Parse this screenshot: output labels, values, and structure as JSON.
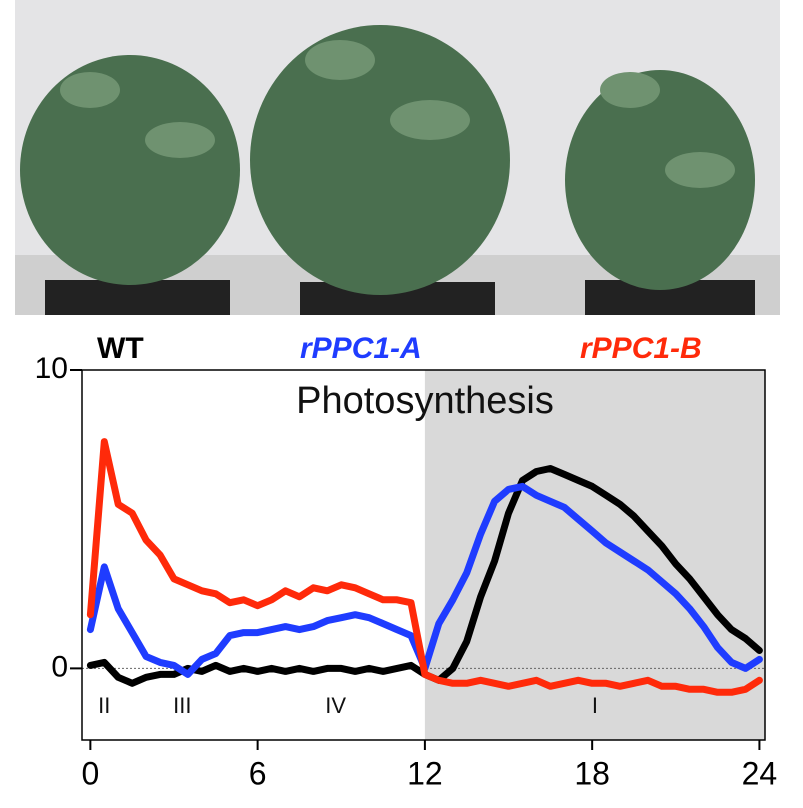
{
  "chart_data": {
    "type": "line",
    "title": "Photosynthesis",
    "x": [
      0,
      0.5,
      1,
      1.5,
      2,
      2.5,
      3,
      3.5,
      4,
      4.5,
      5,
      5.5,
      6,
      6.5,
      7,
      7.5,
      8,
      8.5,
      9,
      9.5,
      10,
      10.5,
      11,
      11.5,
      12,
      12.5,
      13,
      13.5,
      14,
      14.5,
      15,
      15.5,
      16,
      16.5,
      17,
      17.5,
      18,
      18.5,
      19,
      19.5,
      20,
      20.5,
      21,
      21.5,
      22,
      22.5,
      23,
      23.5,
      24
    ],
    "series": [
      {
        "name": "WT",
        "color": "#000000",
        "values": [
          0.1,
          0.2,
          -0.3,
          -0.5,
          -0.3,
          -0.2,
          -0.2,
          0.0,
          -0.1,
          0.1,
          -0.1,
          0.0,
          -0.1,
          0.0,
          -0.1,
          0.0,
          -0.1,
          0.0,
          0.0,
          -0.1,
          0.0,
          -0.1,
          0.0,
          0.1,
          -0.2,
          -0.4,
          0.0,
          0.9,
          2.4,
          3.6,
          5.2,
          6.3,
          6.6,
          6.7,
          6.5,
          6.3,
          6.1,
          5.8,
          5.5,
          5.1,
          4.6,
          4.1,
          3.5,
          3.0,
          2.4,
          1.8,
          1.3,
          1.0,
          0.6
        ]
      },
      {
        "name": "rPPC1-A",
        "color": "#1f3cff",
        "values": [
          1.3,
          3.4,
          2.0,
          1.2,
          0.4,
          0.2,
          0.1,
          -0.2,
          0.3,
          0.5,
          1.1,
          1.2,
          1.2,
          1.3,
          1.4,
          1.3,
          1.4,
          1.6,
          1.7,
          1.8,
          1.7,
          1.5,
          1.3,
          1.1,
          0.0,
          1.5,
          2.3,
          3.2,
          4.5,
          5.6,
          6.0,
          6.1,
          5.8,
          5.6,
          5.4,
          5.0,
          4.6,
          4.2,
          3.9,
          3.6,
          3.3,
          2.9,
          2.5,
          2.0,
          1.4,
          0.7,
          0.2,
          0.0,
          0.3
        ]
      },
      {
        "name": "rPPC1-B",
        "color": "#ff2a0a",
        "values": [
          1.8,
          7.6,
          5.5,
          5.2,
          4.3,
          3.8,
          3.0,
          2.8,
          2.6,
          2.5,
          2.2,
          2.3,
          2.1,
          2.3,
          2.6,
          2.4,
          2.7,
          2.6,
          2.8,
          2.7,
          2.5,
          2.3,
          2.3,
          2.2,
          -0.2,
          -0.4,
          -0.5,
          -0.5,
          -0.4,
          -0.5,
          -0.6,
          -0.5,
          -0.4,
          -0.6,
          -0.5,
          -0.4,
          -0.5,
          -0.5,
          -0.6,
          -0.5,
          -0.4,
          -0.6,
          -0.6,
          -0.7,
          -0.7,
          -0.8,
          -0.8,
          -0.7,
          -0.4
        ]
      }
    ],
    "xlim": [
      -0.3,
      24.2
    ],
    "ylim": [
      -2.4,
      10
    ],
    "xticks": [
      0,
      6,
      12,
      18,
      24
    ],
    "yticks": [
      0,
      10
    ],
    "shaded_xrange": [
      12,
      24.2
    ],
    "annotations": [
      {
        "text": "II",
        "x": 0.5,
        "y": -1.3
      },
      {
        "text": "III",
        "x": 3.3,
        "y": -1.3
      },
      {
        "text": "IV",
        "x": 8.8,
        "y": -1.3
      },
      {
        "text": "I",
        "x": 18.1,
        "y": -1.3
      }
    ]
  }
}
